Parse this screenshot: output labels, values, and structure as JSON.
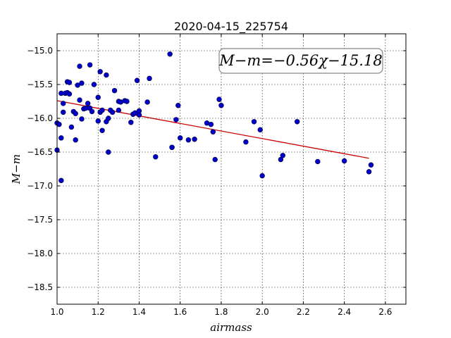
{
  "chart_data": {
    "type": "scatter",
    "title": "2020-04-15_225754",
    "xlabel": "airmass",
    "ylabel": "M−m",
    "xlim": [
      1.0,
      2.7
    ],
    "ylim": [
      -18.75,
      -14.75
    ],
    "y_inverted": true,
    "grid": true,
    "x_ticks": [
      "1.0",
      "1.2",
      "1.4",
      "1.6",
      "1.8",
      "2.0",
      "2.2",
      "2.4",
      "2.6"
    ],
    "y_ticks": [
      "−15.0",
      "−15.5",
      "−16.0",
      "−16.5",
      "−17.0",
      "−17.5",
      "−18.0",
      "−18.5"
    ],
    "annotation": "M−m=−0.56χ−15.18",
    "point_color": "#0000cc",
    "fit_color": "#cc0000",
    "fit": {
      "slope": -0.56,
      "intercept": -15.18,
      "x_range": [
        1.0,
        2.52
      ]
    },
    "points": [
      [
        1.0,
        -16.07
      ],
      [
        1.0,
        -16.47
      ],
      [
        1.01,
        -16.09
      ],
      [
        1.02,
        -15.63
      ],
      [
        1.02,
        -16.29
      ],
      [
        1.02,
        -16.92
      ],
      [
        1.03,
        -15.78
      ],
      [
        1.03,
        -15.91
      ],
      [
        1.04,
        -15.63
      ],
      [
        1.05,
        -15.46
      ],
      [
        1.05,
        -15.62
      ],
      [
        1.06,
        -15.47
      ],
      [
        1.06,
        -15.64
      ],
      [
        1.07,
        -16.13
      ],
      [
        1.08,
        -15.9
      ],
      [
        1.09,
        -15.93
      ],
      [
        1.09,
        -16.32
      ],
      [
        1.1,
        -15.51
      ],
      [
        1.11,
        -15.23
      ],
      [
        1.11,
        -15.73
      ],
      [
        1.12,
        -15.48
      ],
      [
        1.12,
        -16.01
      ],
      [
        1.13,
        -15.86
      ],
      [
        1.14,
        -15.85
      ],
      [
        1.15,
        -15.78
      ],
      [
        1.16,
        -15.85
      ],
      [
        1.16,
        -15.21
      ],
      [
        1.17,
        -15.9
      ],
      [
        1.18,
        -15.5
      ],
      [
        1.2,
        -15.69
      ],
      [
        1.2,
        -16.04
      ],
      [
        1.21,
        -15.91
      ],
      [
        1.21,
        -15.31
      ],
      [
        1.22,
        -16.18
      ],
      [
        1.22,
        -15.88
      ],
      [
        1.24,
        -15.36
      ],
      [
        1.24,
        -16.05
      ],
      [
        1.25,
        -16.0
      ],
      [
        1.25,
        -16.5
      ],
      [
        1.26,
        -15.88
      ],
      [
        1.27,
        -15.91
      ],
      [
        1.28,
        -15.59
      ],
      [
        1.3,
        -15.75
      ],
      [
        1.3,
        -15.88
      ],
      [
        1.31,
        -15.76
      ],
      [
        1.33,
        -15.74
      ],
      [
        1.34,
        -15.75
      ],
      [
        1.36,
        -16.06
      ],
      [
        1.37,
        -15.94
      ],
      [
        1.38,
        -15.92
      ],
      [
        1.39,
        -15.44
      ],
      [
        1.4,
        -15.89
      ],
      [
        1.4,
        -15.95
      ],
      [
        1.44,
        -15.76
      ],
      [
        1.45,
        -15.41
      ],
      [
        1.48,
        -16.57
      ],
      [
        1.55,
        -15.05
      ],
      [
        1.56,
        -16.43
      ],
      [
        1.56,
        -16.43
      ],
      [
        1.58,
        -16.02
      ],
      [
        1.59,
        -15.81
      ],
      [
        1.6,
        -16.29
      ],
      [
        1.64,
        -16.32
      ],
      [
        1.67,
        -16.31
      ],
      [
        1.73,
        -16.07
      ],
      [
        1.75,
        -16.09
      ],
      [
        1.76,
        -16.2
      ],
      [
        1.77,
        -16.61
      ],
      [
        1.79,
        -15.72
      ],
      [
        1.8,
        -15.81
      ],
      [
        1.92,
        -16.35
      ],
      [
        1.96,
        -16.05
      ],
      [
        1.99,
        -16.17
      ],
      [
        2.0,
        -16.85
      ],
      [
        2.09,
        -16.61
      ],
      [
        2.1,
        -16.55
      ],
      [
        2.17,
        -16.05
      ],
      [
        2.27,
        -16.64
      ],
      [
        2.4,
        -16.63
      ],
      [
        2.52,
        -16.79
      ],
      [
        2.53,
        -16.69
      ]
    ]
  }
}
